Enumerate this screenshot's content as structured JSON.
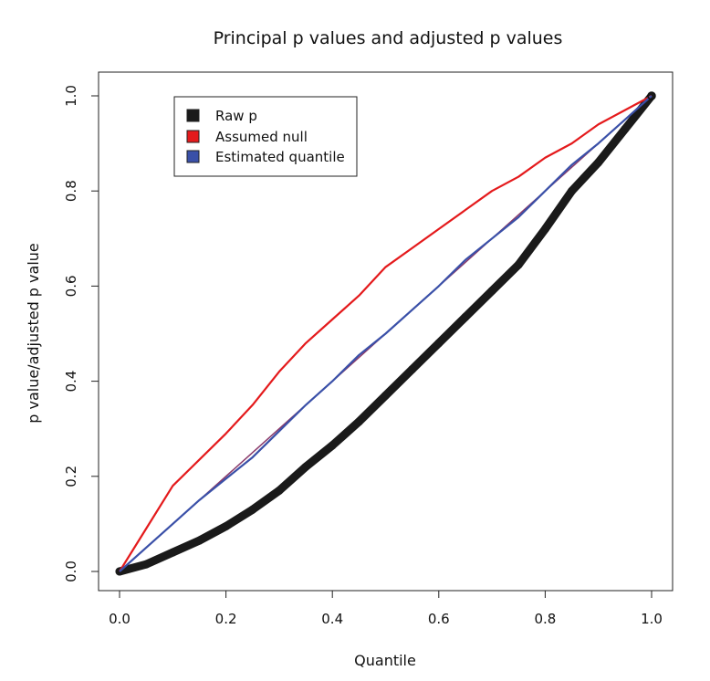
{
  "chart_data": {
    "type": "line",
    "title": "Principal p values and adjusted p values",
    "xlabel": "Quantile",
    "ylabel": "p value/adjusted p value",
    "xlim": [
      0,
      1
    ],
    "ylim": [
      0,
      1
    ],
    "xticks": [
      "0.0",
      "0.2",
      "0.4",
      "0.6",
      "0.8",
      "1.0"
    ],
    "yticks": [
      "0.0",
      "0.2",
      "0.4",
      "0.6",
      "0.8",
      "1.0"
    ],
    "grid": false,
    "legend_position": "top-left",
    "series": [
      {
        "name": "Raw p",
        "color": "#1a1a1a",
        "style": "thick-points",
        "x": [
          0.0,
          0.05,
          0.1,
          0.15,
          0.2,
          0.25,
          0.3,
          0.35,
          0.4,
          0.45,
          0.5,
          0.55,
          0.6,
          0.65,
          0.7,
          0.75,
          0.8,
          0.85,
          0.9,
          0.95,
          1.0
        ],
        "y": [
          0.0,
          0.015,
          0.04,
          0.065,
          0.095,
          0.13,
          0.17,
          0.22,
          0.265,
          0.315,
          0.37,
          0.425,
          0.48,
          0.535,
          0.59,
          0.645,
          0.72,
          0.8,
          0.86,
          0.93,
          1.0
        ]
      },
      {
        "name": "Assumed null",
        "color": "#e41a1c",
        "style": "line",
        "x": [
          0.0,
          0.05,
          0.1,
          0.15,
          0.2,
          0.25,
          0.3,
          0.35,
          0.4,
          0.45,
          0.5,
          0.55,
          0.6,
          0.65,
          0.7,
          0.75,
          0.8,
          0.85,
          0.9,
          0.95,
          1.0
        ],
        "y": [
          0.0,
          0.09,
          0.18,
          0.235,
          0.29,
          0.35,
          0.42,
          0.48,
          0.53,
          0.58,
          0.64,
          0.68,
          0.72,
          0.76,
          0.8,
          0.83,
          0.87,
          0.9,
          0.94,
          0.97,
          1.0
        ]
      },
      {
        "name": "Estimated quantile",
        "color": "#3a50a8",
        "style": "line",
        "x": [
          0.0,
          0.05,
          0.1,
          0.15,
          0.2,
          0.25,
          0.3,
          0.35,
          0.4,
          0.45,
          0.5,
          0.55,
          0.6,
          0.65,
          0.7,
          0.75,
          0.8,
          0.85,
          0.9,
          0.95,
          1.0
        ],
        "y": [
          0.0,
          0.05,
          0.1,
          0.15,
          0.195,
          0.24,
          0.295,
          0.35,
          0.4,
          0.455,
          0.5,
          0.55,
          0.6,
          0.655,
          0.7,
          0.745,
          0.8,
          0.855,
          0.9,
          0.95,
          1.0
        ]
      },
      {
        "name": "",
        "color": "#8a3a6a",
        "style": "reference-line",
        "x": [
          0.0,
          1.0
        ],
        "y": [
          0.0,
          1.0
        ]
      }
    ]
  }
}
